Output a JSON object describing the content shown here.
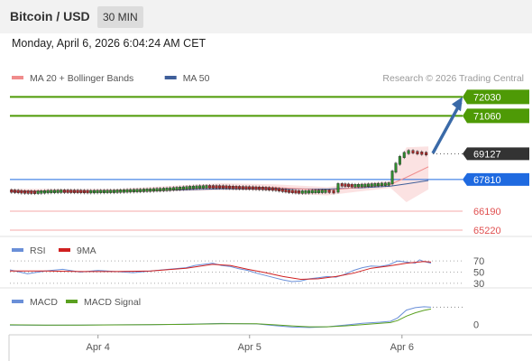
{
  "header": {
    "title": "Bitcoin / USD",
    "interval": "30 MIN"
  },
  "datetime": "Monday, April 6, 2026 6:04:24 AM CET",
  "chart_data": {
    "type": "line",
    "title": "Bitcoin / USD",
    "main": {
      "legend": [
        {
          "label": "MA 20 + Bollinger Bands",
          "color": "#f08c8c"
        },
        {
          "label": "MA 50",
          "color": "#3f5f9a"
        }
      ],
      "copyright": "Research © 2026 Trading Central",
      "ylim": [
        64900,
        72600
      ],
      "current_price": 69127,
      "levels": [
        {
          "value": 72030,
          "label": "72030",
          "kind": "target",
          "color": "#4e9a06"
        },
        {
          "value": 71060,
          "label": "71060",
          "kind": "target",
          "color": "#4e9a06"
        },
        {
          "value": 69127,
          "label": "69127",
          "kind": "last",
          "color": "#333333"
        },
        {
          "value": 67810,
          "label": "67810",
          "kind": "pivot",
          "color": "#1f6ae0"
        },
        {
          "value": 66190,
          "label": "66190",
          "kind": "support",
          "color": "#e05050"
        },
        {
          "value": 65220,
          "label": "65220",
          "kind": "support",
          "color": "#e05050"
        }
      ],
      "price_series": [
        [
          0,
          67240
        ],
        [
          15,
          67190
        ],
        [
          30,
          67170
        ],
        [
          45,
          67210
        ],
        [
          60,
          67230
        ],
        [
          75,
          67220
        ],
        [
          90,
          67205
        ],
        [
          105,
          67215
        ],
        [
          120,
          67225
        ],
        [
          135,
          67250
        ],
        [
          150,
          67270
        ],
        [
          165,
          67300
        ],
        [
          180,
          67330
        ],
        [
          195,
          67380
        ],
        [
          210,
          67430
        ],
        [
          225,
          67460
        ],
        [
          240,
          67450
        ],
        [
          255,
          67420
        ],
        [
          270,
          67400
        ],
        [
          285,
          67380
        ],
        [
          300,
          67330
        ],
        [
          315,
          67230
        ],
        [
          330,
          67180
        ],
        [
          345,
          67210
        ],
        [
          360,
          67230
        ],
        [
          370,
          67180
        ],
        [
          375,
          67560
        ],
        [
          390,
          67510
        ],
        [
          405,
          67530
        ],
        [
          420,
          67570
        ],
        [
          432,
          67600
        ],
        [
          436,
          68200
        ],
        [
          440,
          68600
        ],
        [
          445,
          68950
        ],
        [
          450,
          69150
        ],
        [
          455,
          69250
        ],
        [
          460,
          69200
        ],
        [
          465,
          69180
        ],
        [
          470,
          69150
        ],
        [
          475,
          69127
        ]
      ],
      "ma20": [
        [
          0,
          67240
        ],
        [
          60,
          67220
        ],
        [
          120,
          67220
        ],
        [
          180,
          67280
        ],
        [
          240,
          67440
        ],
        [
          300,
          67400
        ],
        [
          360,
          67260
        ],
        [
          400,
          67420
        ],
        [
          432,
          67560
        ],
        [
          450,
          67920
        ],
        [
          475,
          68460
        ]
      ],
      "ma50": [
        [
          0,
          67200
        ],
        [
          60,
          67210
        ],
        [
          120,
          67225
        ],
        [
          180,
          67260
        ],
        [
          240,
          67330
        ],
        [
          300,
          67330
        ],
        [
          360,
          67320
        ],
        [
          400,
          67390
        ],
        [
          432,
          67470
        ],
        [
          450,
          67590
        ],
        [
          475,
          67760
        ]
      ],
      "bollinger_upper": [
        [
          0,
          67340
        ],
        [
          120,
          67330
        ],
        [
          240,
          67620
        ],
        [
          300,
          67560
        ],
        [
          360,
          67420
        ],
        [
          400,
          67620
        ],
        [
          432,
          67720
        ],
        [
          450,
          69450
        ],
        [
          475,
          69500
        ]
      ],
      "bollinger_lower": [
        [
          0,
          67140
        ],
        [
          120,
          67120
        ],
        [
          240,
          67260
        ],
        [
          300,
          67240
        ],
        [
          330,
          67050
        ],
        [
          360,
          67000
        ],
        [
          400,
          67220
        ],
        [
          432,
          67380
        ],
        [
          450,
          66650
        ],
        [
          475,
          67300
        ]
      ],
      "projection": {
        "from": [
          480,
          69150
        ],
        "to": [
          513,
          72030
        ],
        "color": "#3a6aa8"
      }
    },
    "rsi": {
      "legend": [
        {
          "label": "RSI",
          "color": "#6a8fd8"
        },
        {
          "label": "9MA",
          "color": "#d02020"
        }
      ],
      "levels": [
        {
          "value": 70,
          "label": "70"
        },
        {
          "value": 50,
          "label": "50"
        },
        {
          "value": 30,
          "label": "30"
        }
      ],
      "ylim": [
        20,
        80
      ],
      "rsi": [
        [
          0,
          54
        ],
        [
          20,
          47
        ],
        [
          40,
          52
        ],
        [
          60,
          55
        ],
        [
          80,
          50
        ],
        [
          100,
          53
        ],
        [
          120,
          51
        ],
        [
          140,
          49
        ],
        [
          160,
          52
        ],
        [
          180,
          55
        ],
        [
          200,
          58
        ],
        [
          210,
          62
        ],
        [
          220,
          64
        ],
        [
          230,
          66
        ],
        [
          240,
          62
        ],
        [
          250,
          60
        ],
        [
          260,
          56
        ],
        [
          270,
          53
        ],
        [
          280,
          48
        ],
        [
          290,
          44
        ],
        [
          300,
          40
        ],
        [
          310,
          36
        ],
        [
          320,
          33
        ],
        [
          330,
          34
        ],
        [
          340,
          38
        ],
        [
          350,
          40
        ],
        [
          360,
          42
        ],
        [
          370,
          41
        ],
        [
          380,
          46
        ],
        [
          390,
          53
        ],
        [
          400,
          58
        ],
        [
          410,
          61
        ],
        [
          420,
          60
        ],
        [
          430,
          63
        ],
        [
          440,
          70
        ],
        [
          450,
          68
        ],
        [
          460,
          66
        ],
        [
          465,
          72
        ],
        [
          470,
          69
        ],
        [
          478,
          66
        ]
      ],
      "ma9": [
        [
          0,
          52
        ],
        [
          40,
          52
        ],
        [
          80,
          51
        ],
        [
          120,
          51
        ],
        [
          160,
          52
        ],
        [
          200,
          57
        ],
        [
          230,
          64
        ],
        [
          250,
          62
        ],
        [
          270,
          55
        ],
        [
          290,
          49
        ],
        [
          310,
          42
        ],
        [
          330,
          37
        ],
        [
          350,
          38
        ],
        [
          370,
          42
        ],
        [
          390,
          48
        ],
        [
          410,
          57
        ],
        [
          430,
          61
        ],
        [
          450,
          66
        ],
        [
          470,
          69
        ],
        [
          478,
          68
        ]
      ]
    },
    "macd": {
      "legend": [
        {
          "label": "MACD",
          "color": "#6a8fd8"
        },
        {
          "label": "MACD Signal",
          "color": "#5aa020"
        }
      ],
      "levels": [
        {
          "value": 0,
          "label": "0"
        }
      ],
      "ylim": [
        -500,
        1000
      ],
      "macd": [
        [
          0,
          -20
        ],
        [
          40,
          -30
        ],
        [
          80,
          -20
        ],
        [
          120,
          -10
        ],
        [
          160,
          0
        ],
        [
          200,
          20
        ],
        [
          240,
          50
        ],
        [
          280,
          30
        ],
        [
          300,
          -40
        ],
        [
          320,
          -110
        ],
        [
          340,
          -130
        ],
        [
          360,
          -100
        ],
        [
          380,
          -20
        ],
        [
          400,
          60
        ],
        [
          420,
          110
        ],
        [
          432,
          150
        ],
        [
          440,
          300
        ],
        [
          450,
          650
        ],
        [
          460,
          760
        ],
        [
          470,
          800
        ],
        [
          478,
          780
        ]
      ],
      "signal": [
        [
          0,
          -10
        ],
        [
          40,
          -20
        ],
        [
          80,
          -20
        ],
        [
          120,
          -15
        ],
        [
          160,
          -5
        ],
        [
          200,
          10
        ],
        [
          240,
          40
        ],
        [
          280,
          40
        ],
        [
          300,
          -10
        ],
        [
          320,
          -60
        ],
        [
          340,
          -100
        ],
        [
          360,
          -100
        ],
        [
          380,
          -60
        ],
        [
          400,
          0
        ],
        [
          420,
          60
        ],
        [
          432,
          90
        ],
        [
          440,
          180
        ],
        [
          450,
          380
        ],
        [
          460,
          530
        ],
        [
          470,
          640
        ],
        [
          478,
          700
        ]
      ]
    },
    "x_ticks": [
      {
        "label": "Apr 4",
        "x": 100
      },
      {
        "label": "Apr 5",
        "x": 272
      },
      {
        "label": "Apr 6",
        "x": 445
      }
    ],
    "xlim": [
      0,
      480
    ]
  }
}
